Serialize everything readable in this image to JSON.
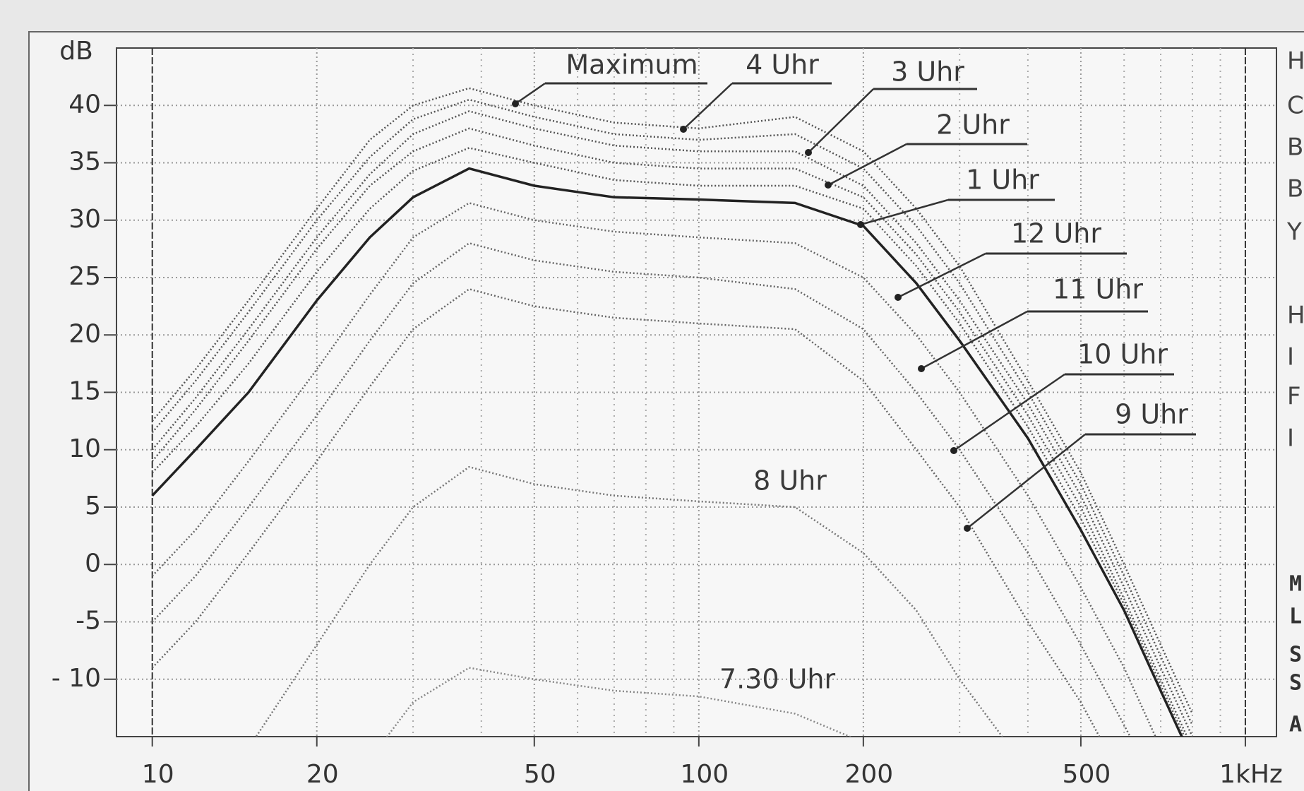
{
  "chart_data": {
    "type": "line",
    "y_label": "dB",
    "log_x": true,
    "grid": true,
    "xlim": [
      8.6,
      1140
    ],
    "ylim": [
      -15,
      45
    ],
    "xticks": [
      10,
      20,
      50,
      100,
      200,
      500,
      {
        "value": 1000,
        "label": "1kHz"
      }
    ],
    "x_minor_ticks": [
      30,
      40,
      60,
      70,
      80,
      90,
      300,
      400,
      600,
      700,
      800,
      900
    ],
    "yticks": [
      40,
      35,
      30,
      25,
      20,
      15,
      10,
      5,
      0,
      -5,
      {
        "value": -10,
        "label": "- 10"
      }
    ],
    "x": [
      10,
      12,
      15,
      20,
      25,
      30,
      38,
      50,
      70,
      100,
      150,
      200,
      250,
      300,
      400,
      500,
      600,
      700,
      800
    ],
    "series": [
      {
        "name": "Maximum",
        "color": "#555555",
        "style": "dotted",
        "values": [
          12.5,
          17,
          23,
          31,
          37,
          40,
          41.5,
          40,
          38.5,
          38,
          39,
          36,
          31,
          26,
          16,
          8,
          0,
          -7,
          -13
        ]
      },
      {
        "name": "4 Uhr",
        "color": "#555555",
        "style": "dotted",
        "values": [
          11.5,
          16,
          22,
          30,
          35.5,
          38.8,
          40.5,
          39,
          37.5,
          37,
          37.5,
          34.5,
          29.5,
          24.5,
          15,
          7,
          -1,
          -8,
          -14
        ]
      },
      {
        "name": "3 Uhr",
        "color": "#555555",
        "style": "dotted",
        "values": [
          10,
          14.5,
          20.5,
          28.5,
          34,
          37.5,
          39.5,
          38,
          36.5,
          36,
          36,
          33,
          28,
          23,
          14,
          6,
          -2,
          -9,
          -15
        ]
      },
      {
        "name": "2 Uhr",
        "color": "#555555",
        "style": "dotted",
        "values": [
          9,
          13.5,
          19.5,
          27.5,
          33,
          36,
          38,
          36.5,
          35,
          34.5,
          34.5,
          32,
          27,
          22,
          13,
          5,
          -3,
          -10,
          -16
        ]
      },
      {
        "name": "1 Uhr",
        "color": "#555555",
        "style": "dotted",
        "values": [
          8,
          12,
          17.5,
          25.5,
          31,
          34.3,
          36.3,
          35,
          33.5,
          33,
          33,
          31,
          26,
          21,
          12,
          4,
          -3.5,
          -10.5,
          -16.5
        ]
      },
      {
        "name": "12 Uhr",
        "color": "#222222",
        "style": "solid",
        "values": [
          6,
          10,
          15,
          23,
          28.5,
          32,
          34.5,
          33,
          32,
          31.8,
          31.5,
          29.5,
          24.5,
          19.5,
          11,
          3,
          -4,
          -11,
          -17
        ]
      },
      {
        "name": "11 Uhr",
        "color": "#666666",
        "style": "dotted",
        "values": [
          -1,
          3,
          9,
          17,
          23.5,
          28.5,
          31.5,
          30,
          29,
          28.5,
          28,
          25,
          20,
          15,
          6,
          -2,
          -9,
          -16,
          null
        ]
      },
      {
        "name": "10 Uhr",
        "color": "#666666",
        "style": "dotted",
        "values": [
          -5,
          -1,
          5,
          13,
          19.5,
          24.5,
          28,
          26.5,
          25.5,
          25,
          24,
          20.5,
          15,
          10,
          1,
          -7,
          -14,
          -20,
          null
        ]
      },
      {
        "name": "9 Uhr",
        "color": "#666666",
        "style": "dotted",
        "values": [
          -9,
          -5,
          1,
          9,
          15.5,
          20.5,
          24,
          22.5,
          21.5,
          21,
          20.5,
          16,
          10,
          5,
          -5,
          -12,
          -19,
          null,
          null
        ]
      },
      {
        "name": "8 Uhr",
        "color": "#777777",
        "style": "dotted",
        "values": [
          null,
          null,
          -16,
          -7,
          0,
          5,
          8.5,
          7,
          6,
          5.5,
          5,
          1,
          -4,
          -10,
          -18,
          null,
          null,
          null,
          null
        ]
      },
      {
        "name": "7.30 Uhr",
        "color": "#888888",
        "style": "dotted",
        "values": [
          null,
          null,
          null,
          null,
          -17,
          -12,
          -9,
          -10,
          -11,
          -11.5,
          -13,
          -15.5,
          null,
          null,
          null,
          null,
          null,
          null,
          null
        ]
      }
    ],
    "right_margin_text": [
      "H",
      "C",
      "B",
      "B",
      "Y",
      "H",
      "I",
      "F",
      "I"
    ],
    "right_margin_mono": [
      "M",
      "L",
      "S",
      "S",
      "A"
    ]
  }
}
